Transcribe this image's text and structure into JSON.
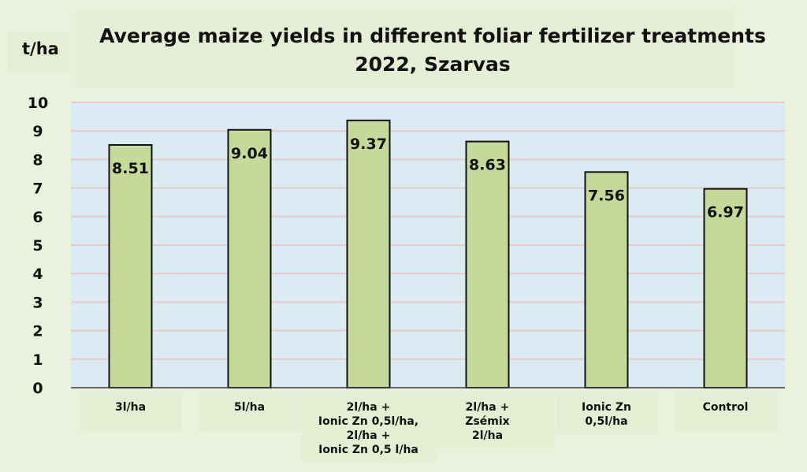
{
  "chart_data": {
    "type": "bar",
    "title_lines": [
      "Average maize yields in different foliar fertilizer treatments",
      "2022, Szarvas"
    ],
    "ylabel": "t/ha",
    "xlabel": "",
    "ylim": [
      0,
      10
    ],
    "yticks": [
      "0",
      "1",
      "2",
      "3",
      "4",
      "5",
      "6",
      "7",
      "8",
      "9",
      "10"
    ],
    "categories": [
      "3l/ha",
      "5l/ha",
      "2l/ha +\nIonic Zn 0,5l/ha,\n2l/ha +\nIonic Zn 0,5 l/ha",
      "2l/ha +\nZsémix\n2l/ha",
      "Ionic Zn\n0,5l/ha",
      "Control"
    ],
    "values": [
      8.51,
      9.04,
      9.37,
      8.63,
      7.56,
      6.97
    ],
    "value_labels": [
      "8.51",
      "9.04",
      "9.37",
      "8.63",
      "7.56",
      "6.97"
    ],
    "grid": true,
    "colors": {
      "bar": "#c5d99a",
      "plot_bg": "#dbeaf3",
      "grid": "#e9c9c9"
    }
  }
}
